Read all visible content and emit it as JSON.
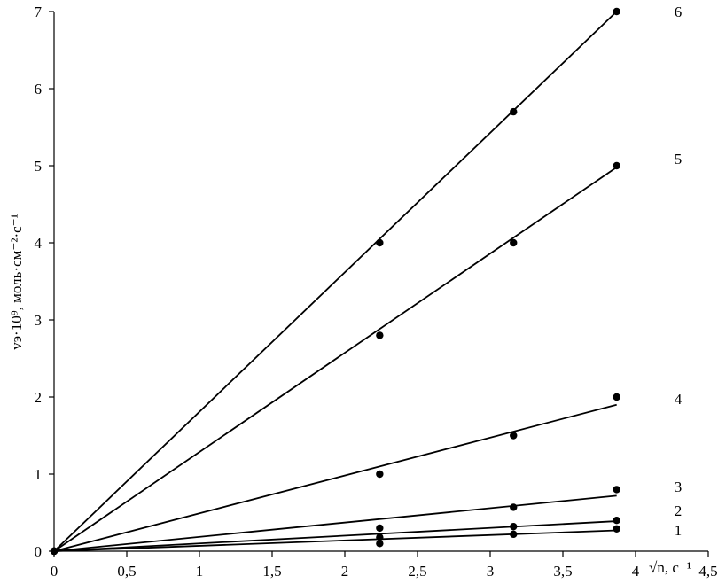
{
  "chart_data": {
    "type": "line",
    "title": "",
    "xlabel": "√n, с⁻¹",
    "ylabel": "vэ·10⁹, моль·см⁻²·с⁻¹",
    "xlim": [
      0,
      4.5
    ],
    "ylim": [
      0,
      7
    ],
    "x_ticks": [
      0,
      0.5,
      1,
      1.5,
      2,
      2.5,
      3,
      3.5,
      4,
      4.5
    ],
    "x_tick_labels": [
      "0",
      "0,5",
      "1",
      "1,5",
      "2",
      "2,5",
      "3",
      "3,5",
      "4",
      "4,5"
    ],
    "y_ticks": [
      0,
      1,
      2,
      3,
      4,
      5,
      6,
      7
    ],
    "y_tick_labels": [
      "0",
      "1",
      "2",
      "3",
      "4",
      "5",
      "6",
      "7"
    ],
    "grid": false,
    "legend": "none",
    "series": [
      {
        "label": "1",
        "points": [
          [
            0,
            0
          ],
          [
            2.24,
            0.1
          ],
          [
            3.16,
            0.22
          ],
          [
            3.87,
            0.29
          ]
        ],
        "fit": [
          [
            0,
            0
          ],
          [
            3.87,
            0.27
          ]
        ]
      },
      {
        "label": "2",
        "points": [
          [
            0,
            0
          ],
          [
            2.24,
            0.18
          ],
          [
            3.16,
            0.32
          ],
          [
            3.87,
            0.4
          ]
        ],
        "fit": [
          [
            0,
            0
          ],
          [
            3.87,
            0.39
          ]
        ]
      },
      {
        "label": "3",
        "points": [
          [
            0,
            0
          ],
          [
            2.24,
            0.3
          ],
          [
            3.16,
            0.57
          ],
          [
            3.87,
            0.8
          ]
        ],
        "fit": [
          [
            0,
            0
          ],
          [
            3.87,
            0.72
          ]
        ]
      },
      {
        "label": "4",
        "points": [
          [
            0,
            0
          ],
          [
            2.24,
            1.0
          ],
          [
            3.16,
            1.5
          ],
          [
            3.87,
            2.0
          ]
        ],
        "fit": [
          [
            0,
            0
          ],
          [
            3.87,
            1.9
          ]
        ]
      },
      {
        "label": "5",
        "points": [
          [
            0,
            0
          ],
          [
            2.24,
            2.8
          ],
          [
            3.16,
            4.0
          ],
          [
            3.87,
            5.0
          ]
        ],
        "fit": [
          [
            0,
            0
          ],
          [
            3.87,
            4.98
          ]
        ]
      },
      {
        "label": "6",
        "points": [
          [
            0,
            0
          ],
          [
            2.24,
            4.0
          ],
          [
            3.16,
            5.7
          ],
          [
            3.87,
            7.0
          ]
        ],
        "fit": [
          [
            0,
            0
          ],
          [
            3.87,
            7.0
          ]
        ]
      }
    ]
  }
}
